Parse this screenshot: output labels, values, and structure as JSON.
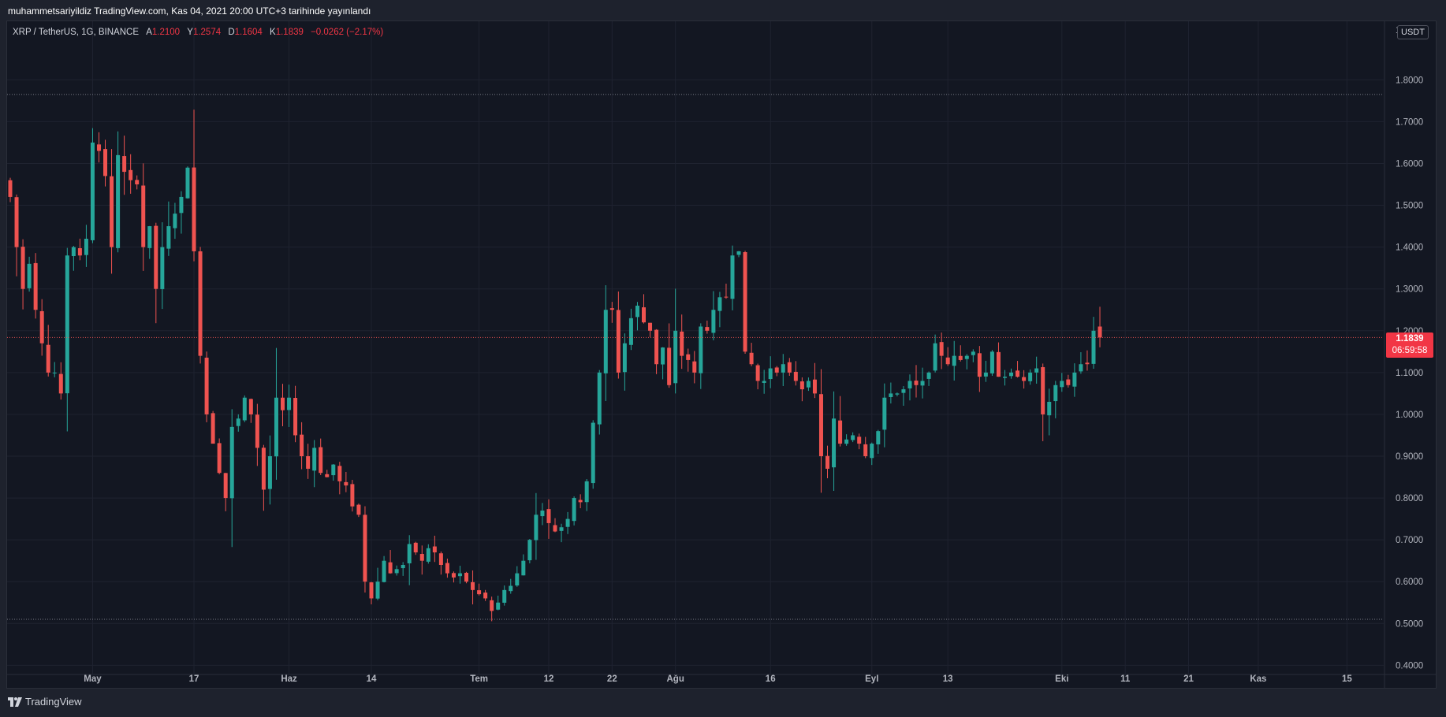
{
  "caption": "muhammetsariyildiz TradingView.com, Kas 04, 2021 20:00 UTC+3 tarihinde yayınlandı",
  "legend": {
    "symbol": "XRP / TetherUS, 1G, BINANCE",
    "open_label": "A",
    "open": "1.2100",
    "high_label": "Y",
    "high": "1.2574",
    "low_label": "D",
    "low": "1.1604",
    "close_label": "K",
    "close": "1.1839",
    "change": "−0.0262 (−2.17%)"
  },
  "currency": "USDT",
  "price_tag": {
    "price": "1.1839",
    "countdown": "06:59:58"
  },
  "footer": {
    "brand": "TradingView"
  },
  "colors": {
    "up": "#26a69a",
    "down": "#ef5350",
    "grid": "#1f2330",
    "background": "#131722",
    "text": "#b2b5be"
  },
  "chart_data": {
    "type": "candlestick",
    "title": "XRP / TetherUS, 1G, BINANCE",
    "ylim": [
      0.38,
      1.94
    ],
    "y_ticks": [
      "0.4000",
      "0.5000",
      "0.6000",
      "0.7000",
      "0.8000",
      "0.9000",
      "1.0000",
      "1.1000",
      "1.2000",
      "1.3000",
      "1.4000",
      "1.5000",
      "1.6000",
      "1.7000",
      "1.8000"
    ],
    "top_tick_partial": "1",
    "x_ticks": [
      {
        "label": "May",
        "day": 13
      },
      {
        "label": "17",
        "day": 29
      },
      {
        "label": "Haz",
        "day": 44
      },
      {
        "label": "14",
        "day": 57
      },
      {
        "label": "Tem",
        "day": 74
      },
      {
        "label": "12",
        "day": 85
      },
      {
        "label": "22",
        "day": 95
      },
      {
        "label": "Ağu",
        "day": 105
      },
      {
        "label": "16",
        "day": 120
      },
      {
        "label": "Eyl",
        "day": 136
      },
      {
        "label": "13",
        "day": 148
      },
      {
        "label": "Eki",
        "day": 166
      },
      {
        "label": "11",
        "day": 176
      },
      {
        "label": "21",
        "day": 186
      },
      {
        "label": "Kas",
        "day": 197
      },
      {
        "label": "15",
        "day": 211
      }
    ],
    "horizontal_lines": [
      1.765,
      0.51
    ],
    "last_price": 1.1839,
    "anchors": [
      [
        0,
        1.52
      ],
      [
        1,
        1.4
      ],
      [
        2,
        1.3
      ],
      [
        3,
        1.36
      ],
      [
        4,
        1.25
      ],
      [
        5,
        1.17
      ],
      [
        6,
        1.1
      ],
      [
        7,
        1.1
      ],
      [
        8,
        1.05
      ],
      [
        9,
        1.38
      ],
      [
        10,
        1.4
      ],
      [
        11,
        1.38
      ],
      [
        12,
        1.42
      ],
      [
        13,
        1.65
      ],
      [
        14,
        1.63
      ],
      [
        15,
        1.57
      ],
      [
        16,
        1.4
      ],
      [
        17,
        1.62
      ],
      [
        18,
        1.58
      ],
      [
        19,
        1.56
      ],
      [
        20,
        1.55
      ],
      [
        21,
        1.4
      ],
      [
        22,
        1.45
      ],
      [
        23,
        1.3
      ],
      [
        24,
        1.4
      ],
      [
        25,
        1.45
      ],
      [
        26,
        1.48
      ],
      [
        27,
        1.52
      ],
      [
        28,
        1.59
      ],
      [
        29,
        1.39
      ],
      [
        30,
        1.14
      ],
      [
        31,
        1.0
      ],
      [
        32,
        0.93
      ],
      [
        33,
        0.86
      ],
      [
        34,
        0.8
      ],
      [
        35,
        0.97
      ],
      [
        36,
        0.99
      ],
      [
        37,
        1.04
      ],
      [
        38,
        1.0
      ],
      [
        39,
        0.92
      ],
      [
        40,
        0.82
      ],
      [
        41,
        0.9
      ],
      [
        42,
        1.04
      ],
      [
        43,
        1.01
      ],
      [
        44,
        1.04
      ],
      [
        45,
        0.95
      ],
      [
        46,
        0.9
      ],
      [
        47,
        0.87
      ],
      [
        48,
        0.92
      ],
      [
        49,
        0.86
      ],
      [
        50,
        0.85
      ],
      [
        51,
        0.88
      ],
      [
        52,
        0.84
      ],
      [
        53,
        0.83
      ],
      [
        54,
        0.78
      ],
      [
        55,
        0.76
      ],
      [
        56,
        0.6
      ],
      [
        57,
        0.56
      ],
      [
        58,
        0.6
      ],
      [
        59,
        0.65
      ],
      [
        60,
        0.62
      ],
      [
        61,
        0.63
      ],
      [
        62,
        0.64
      ],
      [
        63,
        0.69
      ],
      [
        64,
        0.67
      ],
      [
        65,
        0.65
      ],
      [
        66,
        0.68
      ],
      [
        67,
        0.67
      ],
      [
        68,
        0.64
      ],
      [
        69,
        0.62
      ],
      [
        70,
        0.61
      ],
      [
        71,
        0.62
      ],
      [
        72,
        0.6
      ],
      [
        73,
        0.58
      ],
      [
        74,
        0.57
      ],
      [
        75,
        0.56
      ],
      [
        76,
        0.53
      ],
      [
        77,
        0.55
      ],
      [
        78,
        0.58
      ],
      [
        79,
        0.59
      ],
      [
        80,
        0.62
      ],
      [
        81,
        0.65
      ],
      [
        82,
        0.7
      ],
      [
        83,
        0.76
      ],
      [
        84,
        0.77
      ],
      [
        85,
        0.74
      ],
      [
        86,
        0.72
      ],
      [
        87,
        0.73
      ],
      [
        88,
        0.75
      ],
      [
        89,
        0.8
      ],
      [
        90,
        0.79
      ],
      [
        91,
        0.84
      ],
      [
        92,
        0.98
      ],
      [
        93,
        1.1
      ],
      [
        94,
        1.25
      ],
      [
        95,
        1.25
      ],
      [
        96,
        1.1
      ],
      [
        97,
        1.17
      ],
      [
        98,
        1.23
      ],
      [
        99,
        1.26
      ],
      [
        100,
        1.22
      ],
      [
        101,
        1.2
      ],
      [
        102,
        1.12
      ],
      [
        103,
        1.16
      ],
      [
        104,
        1.07
      ],
      [
        105,
        1.2
      ],
      [
        106,
        1.14
      ],
      [
        107,
        1.13
      ],
      [
        108,
        1.1
      ],
      [
        109,
        1.21
      ],
      [
        110,
        1.2
      ],
      [
        111,
        1.25
      ],
      [
        112,
        1.28
      ],
      [
        113,
        1.28
      ],
      [
        114,
        1.38
      ],
      [
        115,
        1.39
      ],
      [
        116,
        1.15
      ],
      [
        117,
        1.12
      ],
      [
        118,
        1.08
      ],
      [
        119,
        1.08
      ],
      [
        120,
        1.11
      ],
      [
        121,
        1.1
      ],
      [
        122,
        1.12
      ],
      [
        123,
        1.1
      ],
      [
        124,
        1.08
      ],
      [
        125,
        1.06
      ],
      [
        126,
        1.08
      ],
      [
        127,
        1.05
      ],
      [
        128,
        0.9
      ],
      [
        129,
        0.87
      ],
      [
        130,
        0.99
      ],
      [
        131,
        0.93
      ],
      [
        132,
        0.94
      ],
      [
        133,
        0.95
      ],
      [
        134,
        0.93
      ],
      [
        135,
        0.9
      ],
      [
        136,
        0.93
      ],
      [
        137,
        0.96
      ],
      [
        138,
        1.04
      ],
      [
        139,
        1.05
      ],
      [
        140,
        1.05
      ],
      [
        141,
        1.06
      ],
      [
        142,
        1.08
      ],
      [
        143,
        1.07
      ],
      [
        144,
        1.08
      ],
      [
        145,
        1.1
      ],
      [
        146,
        1.17
      ],
      [
        147,
        1.14
      ],
      [
        148,
        1.12
      ],
      [
        149,
        1.14
      ],
      [
        150,
        1.13
      ],
      [
        151,
        1.14
      ],
      [
        152,
        1.15
      ],
      [
        153,
        1.09
      ],
      [
        154,
        1.1
      ],
      [
        155,
        1.15
      ],
      [
        156,
        1.09
      ],
      [
        157,
        1.09
      ],
      [
        158,
        1.1
      ],
      [
        159,
        1.09
      ],
      [
        160,
        1.08
      ],
      [
        161,
        1.1
      ],
      [
        162,
        1.11
      ],
      [
        163,
        1.0
      ],
      [
        164,
        1.03
      ],
      [
        165,
        1.07
      ],
      [
        166,
        1.08
      ],
      [
        167,
        1.07
      ],
      [
        168,
        1.1
      ],
      [
        169,
        1.12
      ],
      [
        170,
        1.12
      ],
      [
        171,
        1.2
      ],
      [
        172,
        1.1839
      ]
    ]
  }
}
